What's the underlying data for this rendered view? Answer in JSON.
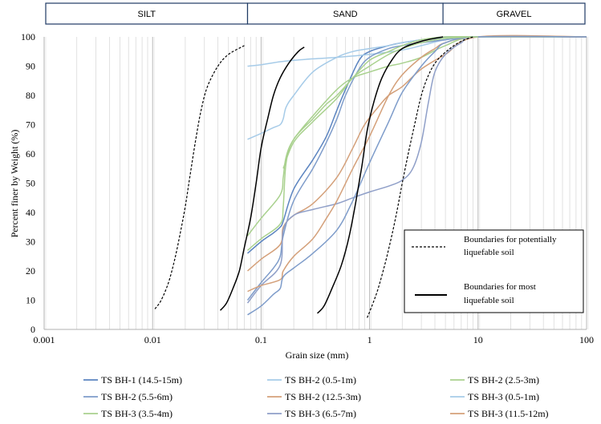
{
  "soil_bands": [
    {
      "label": "SILT",
      "from": 0.001,
      "to": 0.075
    },
    {
      "label": "SAND",
      "from": 0.075,
      "to": 4.75
    },
    {
      "label": "GRAVEL",
      "from": 4.75,
      "to": 100
    }
  ],
  "chart_data": {
    "type": "line",
    "title": "",
    "xlabel": "Grain size (mm)",
    "ylabel": "Percent finer by Weight (%)",
    "x_scale": "log",
    "xlim": [
      0.001,
      100
    ],
    "ylim": [
      0,
      100
    ],
    "x_ticks": [
      "0.001",
      "0.01",
      "0.1",
      "1",
      "10",
      "100"
    ],
    "y_ticks": [
      "0",
      "10",
      "20",
      "30",
      "40",
      "50",
      "60",
      "70",
      "80",
      "90",
      "100"
    ],
    "grid": true,
    "series": [
      {
        "name": "TS BH-1 (14.5-15m)",
        "color": "#5b84c0",
        "points": [
          [
            0.075,
            26
          ],
          [
            0.1,
            30
          ],
          [
            0.13,
            33
          ],
          [
            0.15,
            35
          ],
          [
            0.16,
            37
          ],
          [
            0.2,
            48
          ],
          [
            0.3,
            58
          ],
          [
            0.4,
            66
          ],
          [
            0.5,
            75
          ],
          [
            0.6,
            82
          ],
          [
            0.8,
            92
          ],
          [
            1,
            95
          ],
          [
            1.5,
            97
          ],
          [
            2,
            98
          ],
          [
            3,
            99
          ],
          [
            5,
            100
          ],
          [
            10,
            100
          ],
          [
            100,
            100
          ]
        ]
      },
      {
        "name": "TS BH-2 (0.5-1m)",
        "color": "#a6cbe8",
        "points": [
          [
            0.075,
            90
          ],
          [
            0.1,
            90.5
          ],
          [
            0.15,
            91.5
          ],
          [
            0.2,
            92
          ],
          [
            0.3,
            92.5
          ],
          [
            0.5,
            93
          ],
          [
            1,
            94
          ],
          [
            2,
            95.5
          ],
          [
            3,
            97
          ],
          [
            5,
            99
          ],
          [
            10,
            100
          ],
          [
            100,
            100
          ]
        ]
      },
      {
        "name": "TS BH-2 (2.5-3m)",
        "color": "#a9d18e",
        "points": [
          [
            0.075,
            32
          ],
          [
            0.1,
            38
          ],
          [
            0.15,
            46
          ],
          [
            0.16,
            52
          ],
          [
            0.17,
            59
          ],
          [
            0.2,
            65
          ],
          [
            0.3,
            73
          ],
          [
            0.5,
            82
          ],
          [
            0.7,
            86
          ],
          [
            1,
            88
          ],
          [
            1.5,
            90
          ],
          [
            2,
            91
          ],
          [
            3,
            93
          ],
          [
            5,
            97
          ],
          [
            10,
            100
          ],
          [
            100,
            100
          ]
        ]
      },
      {
        "name": "TS BH-2 (5.5-6m)",
        "color": "#7e9cca",
        "points": [
          [
            0.075,
            10
          ],
          [
            0.1,
            16
          ],
          [
            0.13,
            21
          ],
          [
            0.15,
            25
          ],
          [
            0.16,
            32
          ],
          [
            0.2,
            44
          ],
          [
            0.3,
            55
          ],
          [
            0.4,
            64
          ],
          [
            0.5,
            72
          ],
          [
            0.6,
            80
          ],
          [
            0.8,
            89
          ],
          [
            1,
            93
          ],
          [
            1.5,
            96
          ],
          [
            2,
            97
          ],
          [
            3,
            98
          ],
          [
            5,
            99
          ],
          [
            10,
            100
          ],
          [
            100,
            100
          ]
        ]
      },
      {
        "name": "TS BH-2 (12.5-3m)",
        "color": "#d4a07a",
        "points": [
          [
            0.075,
            20
          ],
          [
            0.1,
            24
          ],
          [
            0.15,
            29
          ],
          [
            0.16,
            35
          ],
          [
            0.2,
            39
          ],
          [
            0.3,
            43
          ],
          [
            0.5,
            52
          ],
          [
            0.7,
            62
          ],
          [
            0.9,
            70
          ],
          [
            1.2,
            76
          ],
          [
            1.5,
            80
          ],
          [
            2,
            83
          ],
          [
            3,
            89
          ],
          [
            5,
            94
          ],
          [
            10,
            100
          ],
          [
            100,
            100
          ]
        ]
      },
      {
        "name": "TS BH-3 (0.5-1m)",
        "color": "#a6cbe8",
        "points": [
          [
            0.075,
            65
          ],
          [
            0.1,
            67
          ],
          [
            0.13,
            69
          ],
          [
            0.15,
            70
          ],
          [
            0.16,
            72
          ],
          [
            0.17,
            76
          ],
          [
            0.2,
            80
          ],
          [
            0.3,
            88
          ],
          [
            0.5,
            93
          ],
          [
            0.7,
            95
          ],
          [
            1,
            96
          ],
          [
            1.5,
            97
          ],
          [
            2,
            98
          ],
          [
            3,
            99
          ],
          [
            5,
            99.5
          ],
          [
            10,
            100
          ],
          [
            100,
            100
          ]
        ]
      },
      {
        "name": "TS BH-3 (3.5-4m)",
        "color": "#a9d18e",
        "points": [
          [
            0.075,
            27
          ],
          [
            0.1,
            31
          ],
          [
            0.15,
            36
          ],
          [
            0.16,
            42
          ],
          [
            0.17,
            57
          ],
          [
            0.2,
            65
          ],
          [
            0.3,
            72
          ],
          [
            0.4,
            77
          ],
          [
            0.5,
            80
          ],
          [
            0.7,
            86
          ],
          [
            1,
            92
          ],
          [
            1.5,
            95
          ],
          [
            2,
            97
          ],
          [
            3,
            99
          ],
          [
            5,
            100
          ],
          [
            10,
            100
          ],
          [
            100,
            100
          ]
        ]
      },
      {
        "name": "TS BH-3 (6.5-7m)",
        "color": "#8f9fc8",
        "points": [
          [
            0.075,
            9
          ],
          [
            0.1,
            15
          ],
          [
            0.15,
            22
          ],
          [
            0.16,
            34
          ],
          [
            0.2,
            39
          ],
          [
            0.3,
            41
          ],
          [
            0.5,
            43
          ],
          [
            0.7,
            45
          ],
          [
            1,
            47
          ],
          [
            1.5,
            49
          ],
          [
            2,
            51
          ],
          [
            2.5,
            55
          ],
          [
            3,
            64
          ],
          [
            3.5,
            78
          ],
          [
            4,
            88
          ],
          [
            5,
            94
          ],
          [
            7,
            98
          ],
          [
            10,
            100
          ],
          [
            100,
            100
          ]
        ]
      },
      {
        "name": "TS BH-3 (11.5-12m)",
        "color": "#d4a07a",
        "points": [
          [
            0.075,
            13
          ],
          [
            0.1,
            15
          ],
          [
            0.15,
            17
          ],
          [
            0.16,
            20
          ],
          [
            0.2,
            25
          ],
          [
            0.3,
            31
          ],
          [
            0.4,
            38
          ],
          [
            0.5,
            44
          ],
          [
            0.7,
            55
          ],
          [
            1,
            66
          ],
          [
            1.5,
            80
          ],
          [
            2,
            87
          ],
          [
            3,
            93
          ],
          [
            4,
            96
          ],
          [
            5,
            98
          ],
          [
            10,
            100
          ],
          [
            100,
            100
          ]
        ]
      },
      {
        "name": "",
        "color": "#7e9cca",
        "points": [
          [
            0.075,
            5
          ],
          [
            0.1,
            8
          ],
          [
            0.13,
            12
          ],
          [
            0.15,
            14
          ],
          [
            0.16,
            18
          ],
          [
            0.2,
            21
          ],
          [
            0.3,
            26
          ],
          [
            0.5,
            34
          ],
          [
            0.7,
            44
          ],
          [
            1,
            57
          ],
          [
            1.5,
            71
          ],
          [
            2,
            81
          ],
          [
            3,
            90
          ],
          [
            4,
            95
          ],
          [
            5,
            98
          ],
          [
            10,
            100
          ],
          [
            100,
            100
          ]
        ]
      },
      {
        "name": "",
        "color": "#a9d18e",
        "points": [
          [
            0.16,
            55
          ],
          [
            0.2,
            64
          ],
          [
            0.3,
            71
          ],
          [
            0.5,
            79
          ],
          [
            0.7,
            86
          ],
          [
            1,
            90
          ],
          [
            1.5,
            94
          ],
          [
            2,
            96
          ],
          [
            3,
            98
          ],
          [
            5,
            99.5
          ],
          [
            10,
            100
          ]
        ]
      }
    ],
    "boundaries": [
      {
        "legend": "Boundaries for potentially liquefable soil",
        "style": "dashed",
        "curves": [
          [
            [
              0.0105,
              7
            ],
            [
              0.012,
              10
            ],
            [
              0.014,
              16
            ],
            [
              0.016,
              24
            ],
            [
              0.018,
              33
            ],
            [
              0.02,
              42
            ],
            [
              0.022,
              52
            ],
            [
              0.025,
              65
            ],
            [
              0.028,
              75
            ],
            [
              0.032,
              83
            ],
            [
              0.04,
              90
            ],
            [
              0.05,
              94
            ],
            [
              0.07,
              97
            ]
          ],
          [
            [
              0.95,
              4
            ],
            [
              1.05,
              8
            ],
            [
              1.2,
              14
            ],
            [
              1.4,
              23
            ],
            [
              1.6,
              32
            ],
            [
              1.8,
              41
            ],
            [
              2.0,
              50
            ],
            [
              2.3,
              61
            ],
            [
              2.6,
              70
            ],
            [
              3.0,
              80
            ],
            [
              3.5,
              87
            ],
            [
              4.2,
              92
            ],
            [
              5.5,
              96
            ],
            [
              7,
              98.5
            ],
            [
              9,
              100
            ]
          ]
        ]
      },
      {
        "legend": "Boundaries for most liquefable soil",
        "style": "solid",
        "curves": [
          [
            [
              0.042,
              6.5
            ],
            [
              0.048,
              9
            ],
            [
              0.055,
              14
            ],
            [
              0.063,
              20
            ],
            [
              0.07,
              28
            ],
            [
              0.08,
              38
            ],
            [
              0.09,
              50
            ],
            [
              0.1,
              62
            ],
            [
              0.115,
              72
            ],
            [
              0.13,
              80
            ],
            [
              0.15,
              86
            ],
            [
              0.18,
              91
            ],
            [
              0.22,
              95
            ],
            [
              0.25,
              96.5
            ]
          ],
          [
            [
              0.33,
              5.5
            ],
            [
              0.38,
              8
            ],
            [
              0.45,
              14
            ],
            [
              0.55,
              22
            ],
            [
              0.65,
              32
            ],
            [
              0.75,
              44
            ],
            [
              0.85,
              56
            ],
            [
              0.95,
              68
            ],
            [
              1.1,
              78
            ],
            [
              1.3,
              86
            ],
            [
              1.6,
              92
            ],
            [
              2.0,
              96
            ],
            [
              3,
              98.5
            ],
            [
              4.75,
              100
            ]
          ]
        ]
      }
    ]
  }
}
